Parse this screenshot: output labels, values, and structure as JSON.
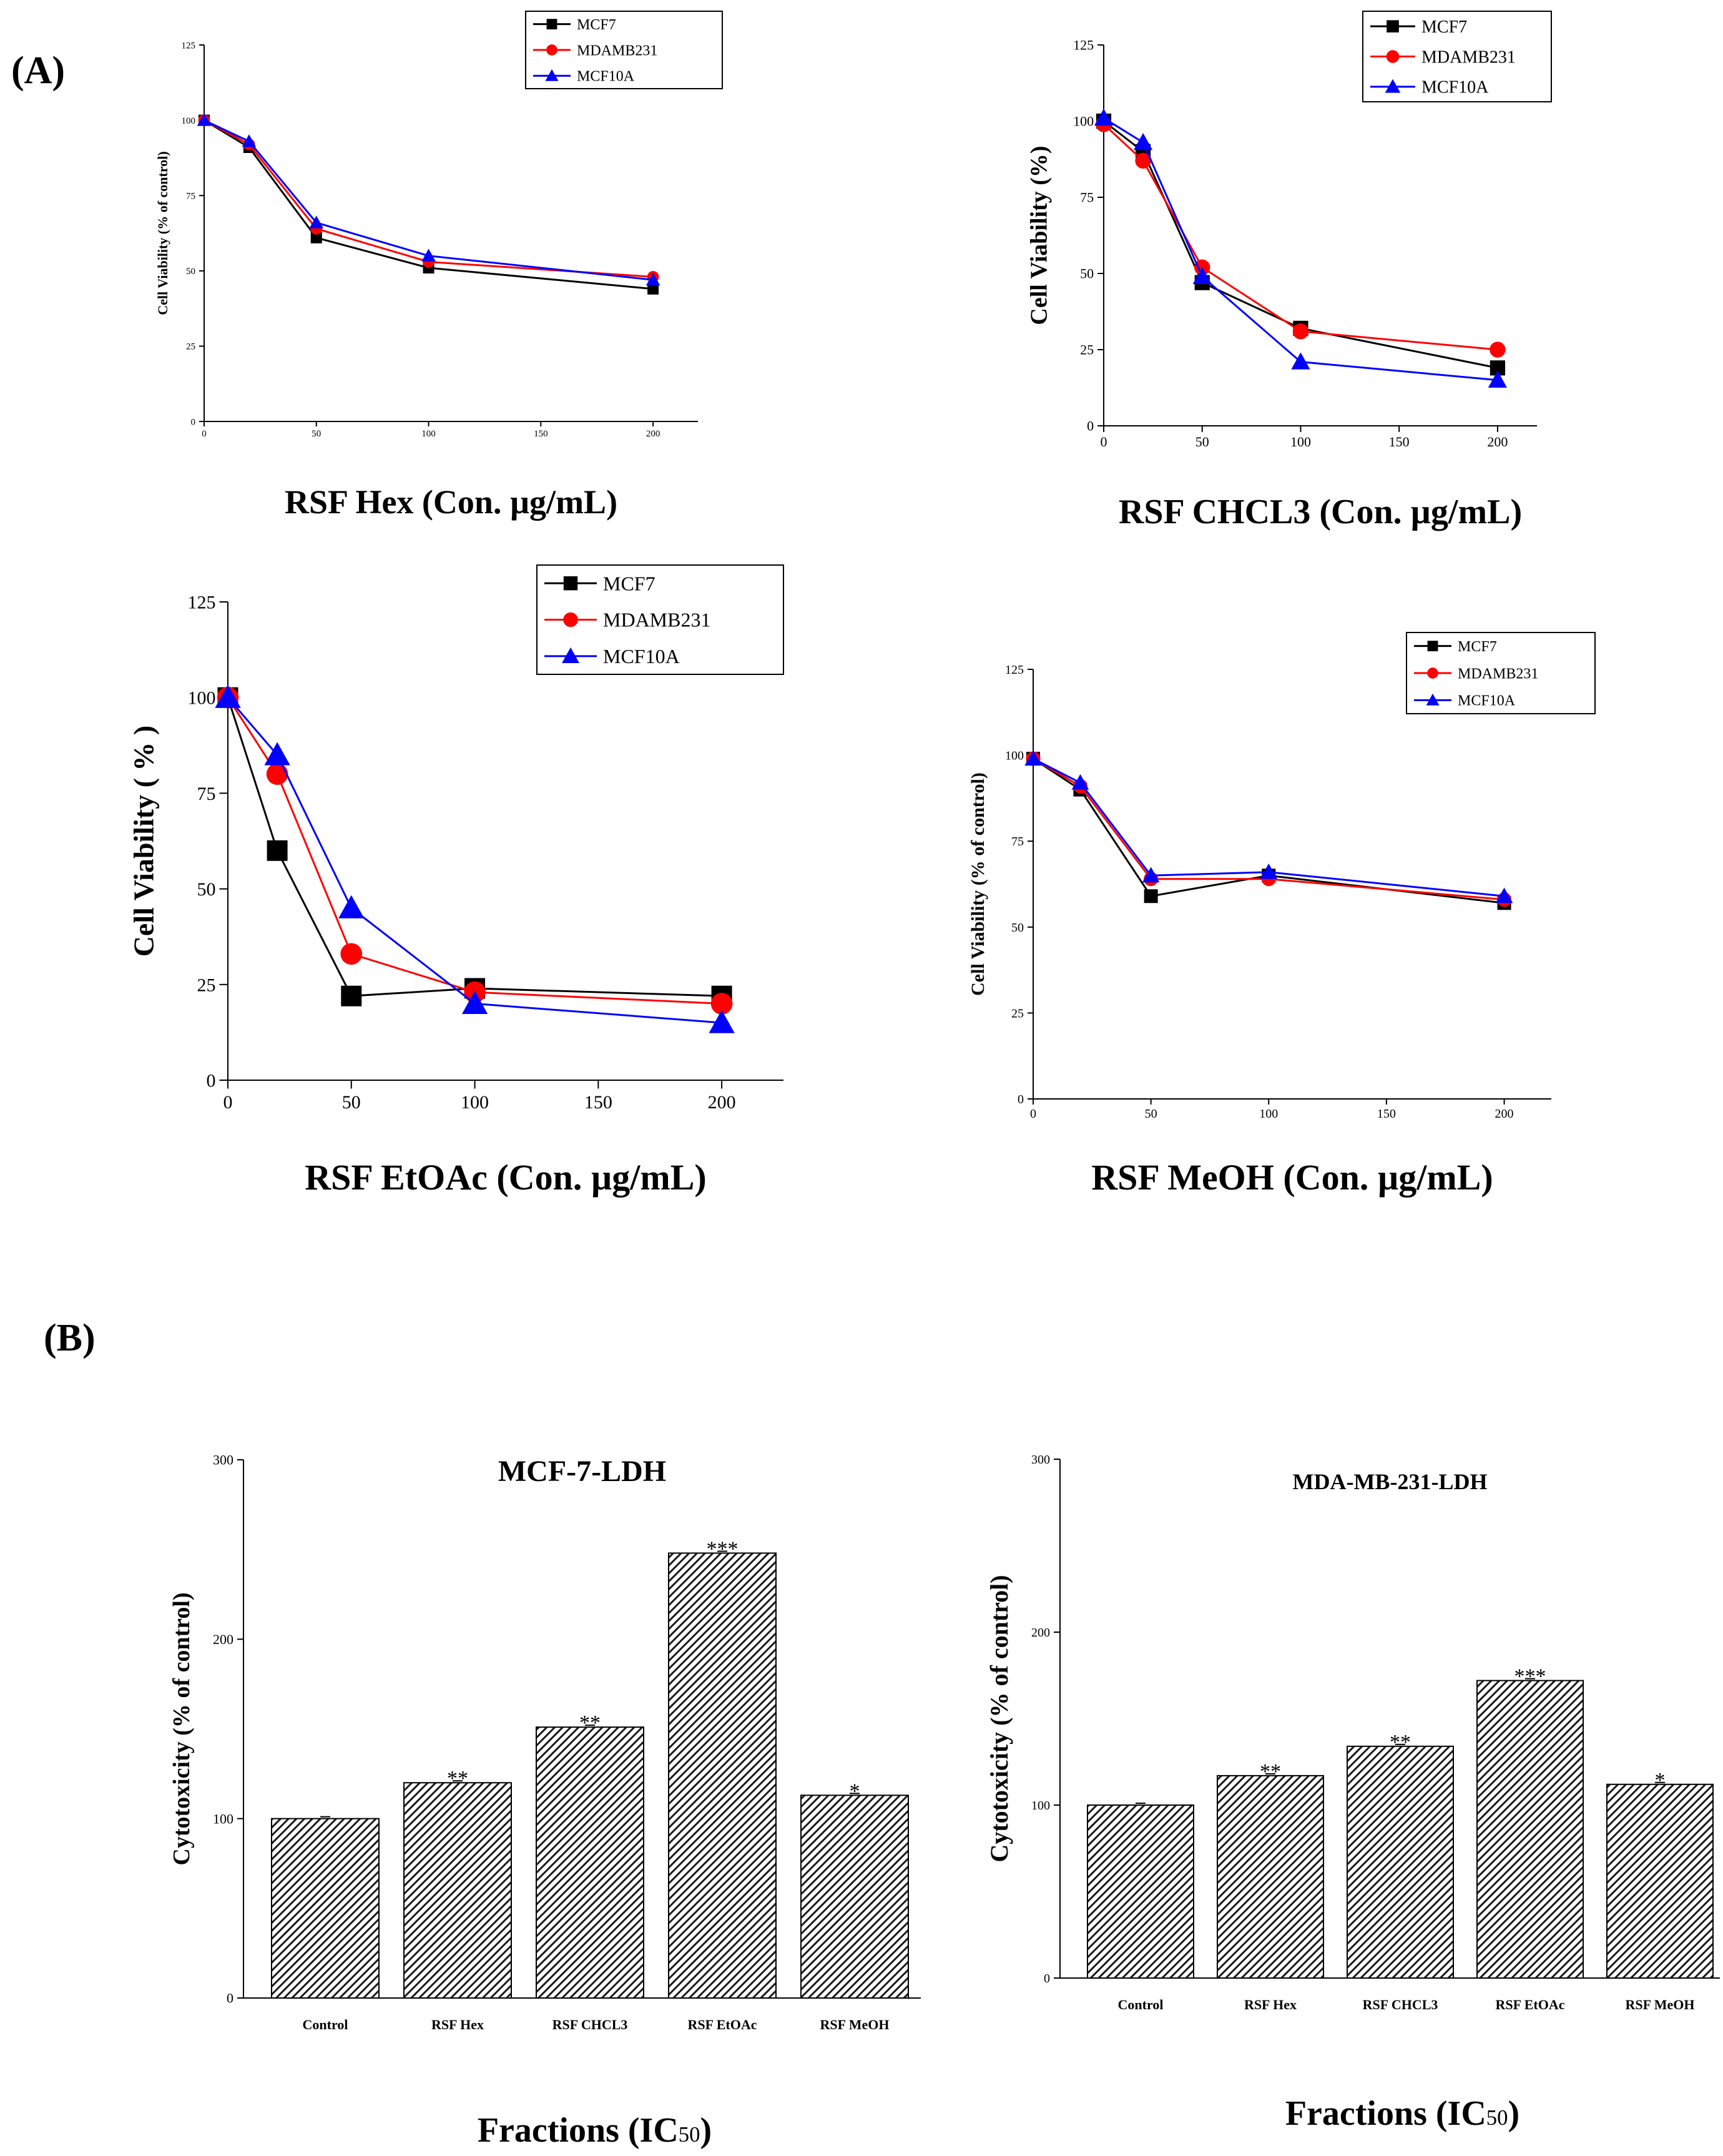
{
  "panel_labels": {
    "a": "(A)",
    "b": "(B)"
  },
  "colors": {
    "black": "#000000",
    "red": "#ff0000",
    "blue": "#0000ff",
    "hatch": "#1a1a1a"
  },
  "chart_data": [
    {
      "id": "hex",
      "type": "line",
      "xlabel": "RSF Hex (Con. µg/mL)",
      "ylabel": "Cell Viability (% of control)",
      "xlim": [
        0,
        220
      ],
      "ylim": [
        0,
        125
      ],
      "xticks": [
        0,
        50,
        100,
        150,
        200
      ],
      "yticks": [
        0,
        25,
        50,
        75,
        100,
        125
      ],
      "x": [
        0,
        20,
        50,
        100,
        200
      ],
      "series": [
        {
          "name": "MCF7",
          "color": "#000000",
          "marker": "square",
          "values": [
            100,
            91,
            61,
            51,
            44
          ]
        },
        {
          "name": "MDAMB231",
          "color": "#ff0000",
          "marker": "circle",
          "values": [
            100,
            92,
            64,
            53,
            48
          ]
        },
        {
          "name": "MCF10A",
          "color": "#0000ff",
          "marker": "triangle",
          "values": [
            100,
            93,
            66,
            55,
            47
          ]
        }
      ]
    },
    {
      "id": "chcl3",
      "type": "line",
      "xlabel": "RSF CHCL3 (Con. µg/mL)",
      "ylabel": "Cell Viability (%)",
      "xlim": [
        0,
        220
      ],
      "ylim": [
        0,
        125
      ],
      "xticks": [
        0,
        50,
        100,
        150,
        200
      ],
      "yticks": [
        0,
        25,
        50,
        75,
        100,
        125
      ],
      "x": [
        0,
        20,
        50,
        100,
        200
      ],
      "series": [
        {
          "name": "MCF7",
          "color": "#000000",
          "marker": "square",
          "values": [
            100,
            90,
            47,
            32,
            19
          ]
        },
        {
          "name": "MDAMB231",
          "color": "#ff0000",
          "marker": "circle",
          "values": [
            99,
            87,
            52,
            31,
            25
          ]
        },
        {
          "name": "MCF10A",
          "color": "#0000ff",
          "marker": "triangle",
          "values": [
            101,
            93,
            49,
            21,
            15
          ]
        }
      ]
    },
    {
      "id": "etoac",
      "type": "line",
      "xlabel": "RSF EtOAc (Con. µg/mL)",
      "ylabel": "Cell Viability ( % )",
      "xlim": [
        0,
        225
      ],
      "ylim": [
        0,
        125
      ],
      "xticks": [
        0,
        50,
        100,
        150,
        200
      ],
      "yticks": [
        0,
        25,
        50,
        75,
        100,
        125
      ],
      "x": [
        0,
        20,
        50,
        100,
        200
      ],
      "series": [
        {
          "name": "MCF7",
          "color": "#000000",
          "marker": "square",
          "values": [
            100,
            60,
            22,
            24,
            22
          ]
        },
        {
          "name": "MDAMB231",
          "color": "#ff0000",
          "marker": "circle",
          "values": [
            100,
            80,
            33,
            23,
            20
          ]
        },
        {
          "name": "MCF10A",
          "color": "#0000ff",
          "marker": "triangle",
          "values": [
            100,
            85,
            45,
            20,
            15
          ]
        }
      ]
    },
    {
      "id": "meoh",
      "type": "line",
      "xlabel": "RSF MeOH (Con. µg/mL)",
      "ylabel": "Cell Viability (% of control)",
      "xlim": [
        0,
        220
      ],
      "ylim": [
        0,
        125
      ],
      "xticks": [
        0,
        50,
        100,
        150,
        200
      ],
      "yticks": [
        0,
        25,
        50,
        75,
        100,
        125
      ],
      "x": [
        0,
        20,
        50,
        100,
        200
      ],
      "series": [
        {
          "name": "MCF7",
          "color": "#000000",
          "marker": "square",
          "values": [
            99,
            90,
            59,
            65,
            57
          ]
        },
        {
          "name": "MDAMB231",
          "color": "#ff0000",
          "marker": "circle",
          "values": [
            99,
            91,
            64,
            64,
            58
          ]
        },
        {
          "name": "MCF10A",
          "color": "#0000ff",
          "marker": "triangle",
          "values": [
            99,
            92,
            65,
            66,
            59
          ]
        }
      ]
    },
    {
      "id": "mcf7ldh",
      "type": "bar",
      "title": "MCF-7-LDH",
      "xlabel": "Fractions (IC50)",
      "ylabel": "Cytotoxicity (% of control)",
      "ylim": [
        0,
        300
      ],
      "yticks": [
        0,
        100,
        200,
        300
      ],
      "categories": [
        "Control",
        "RSF Hex",
        "RSF CHCL3",
        "RSF EtOAc",
        "RSF MeOH"
      ],
      "values": [
        100,
        120,
        151,
        248,
        113
      ],
      "annotations": [
        "",
        "**",
        "**",
        "***",
        "*"
      ]
    },
    {
      "id": "mdaldh",
      "type": "bar",
      "title": "MDA-MB-231-LDH",
      "xlabel": "Fractions (IC50)",
      "ylabel": "Cytotoxicity (% of control)",
      "ylim": [
        0,
        300
      ],
      "yticks": [
        0,
        100,
        200,
        300
      ],
      "categories": [
        "Control",
        "RSF Hex",
        "RSF CHCL3",
        "RSF EtOAc",
        "RSF MeOH"
      ],
      "values": [
        100,
        117,
        134,
        172,
        112
      ],
      "annotations": [
        "",
        "**",
        "**",
        "***",
        "*"
      ]
    }
  ]
}
